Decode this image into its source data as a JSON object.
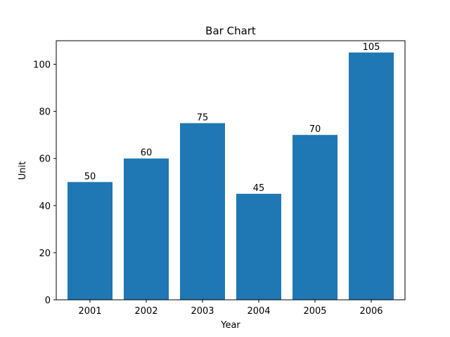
{
  "chart_data": {
    "type": "bar",
    "title": "Bar Chart",
    "xlabel": "Year",
    "ylabel": "Unit",
    "categories": [
      "2001",
      "2002",
      "2003",
      "2004",
      "2005",
      "2006"
    ],
    "values": [
      50,
      60,
      75,
      45,
      70,
      105
    ],
    "ylim": [
      0,
      110
    ],
    "yticks": [
      0,
      20,
      40,
      60,
      80,
      100
    ],
    "grid": false,
    "bar_color": "#1f77b4"
  }
}
